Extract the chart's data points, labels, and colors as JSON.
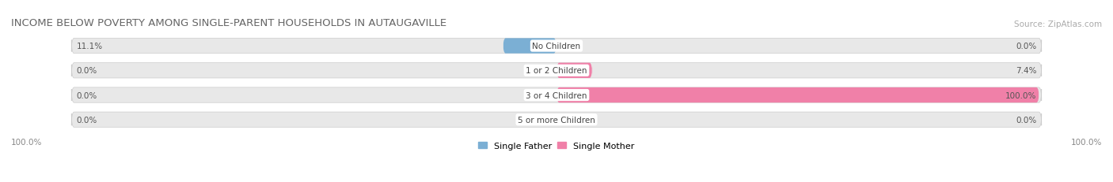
{
  "title": "INCOME BELOW POVERTY AMONG SINGLE-PARENT HOUSEHOLDS IN AUTAUGAVILLE",
  "source": "Source: ZipAtlas.com",
  "categories": [
    "No Children",
    "1 or 2 Children",
    "3 or 4 Children",
    "5 or more Children"
  ],
  "single_father": [
    11.1,
    0.0,
    0.0,
    0.0
  ],
  "single_mother": [
    0.0,
    7.4,
    100.0,
    0.0
  ],
  "father_color": "#7bafd4",
  "mother_color": "#f080a8",
  "bar_bg_color": "#e8e8e8",
  "bar_bg_edge_color": "#d0d0d0",
  "father_label": "Single Father",
  "mother_label": "Single Mother",
  "max_value": 100.0,
  "bottom_left_label": "100.0%",
  "bottom_right_label": "100.0%",
  "title_fontsize": 9.5,
  "source_fontsize": 7.5,
  "legend_fontsize": 8,
  "cat_fontsize": 7.5,
  "val_fontsize": 7.5,
  "bg_alpha": 1.0
}
